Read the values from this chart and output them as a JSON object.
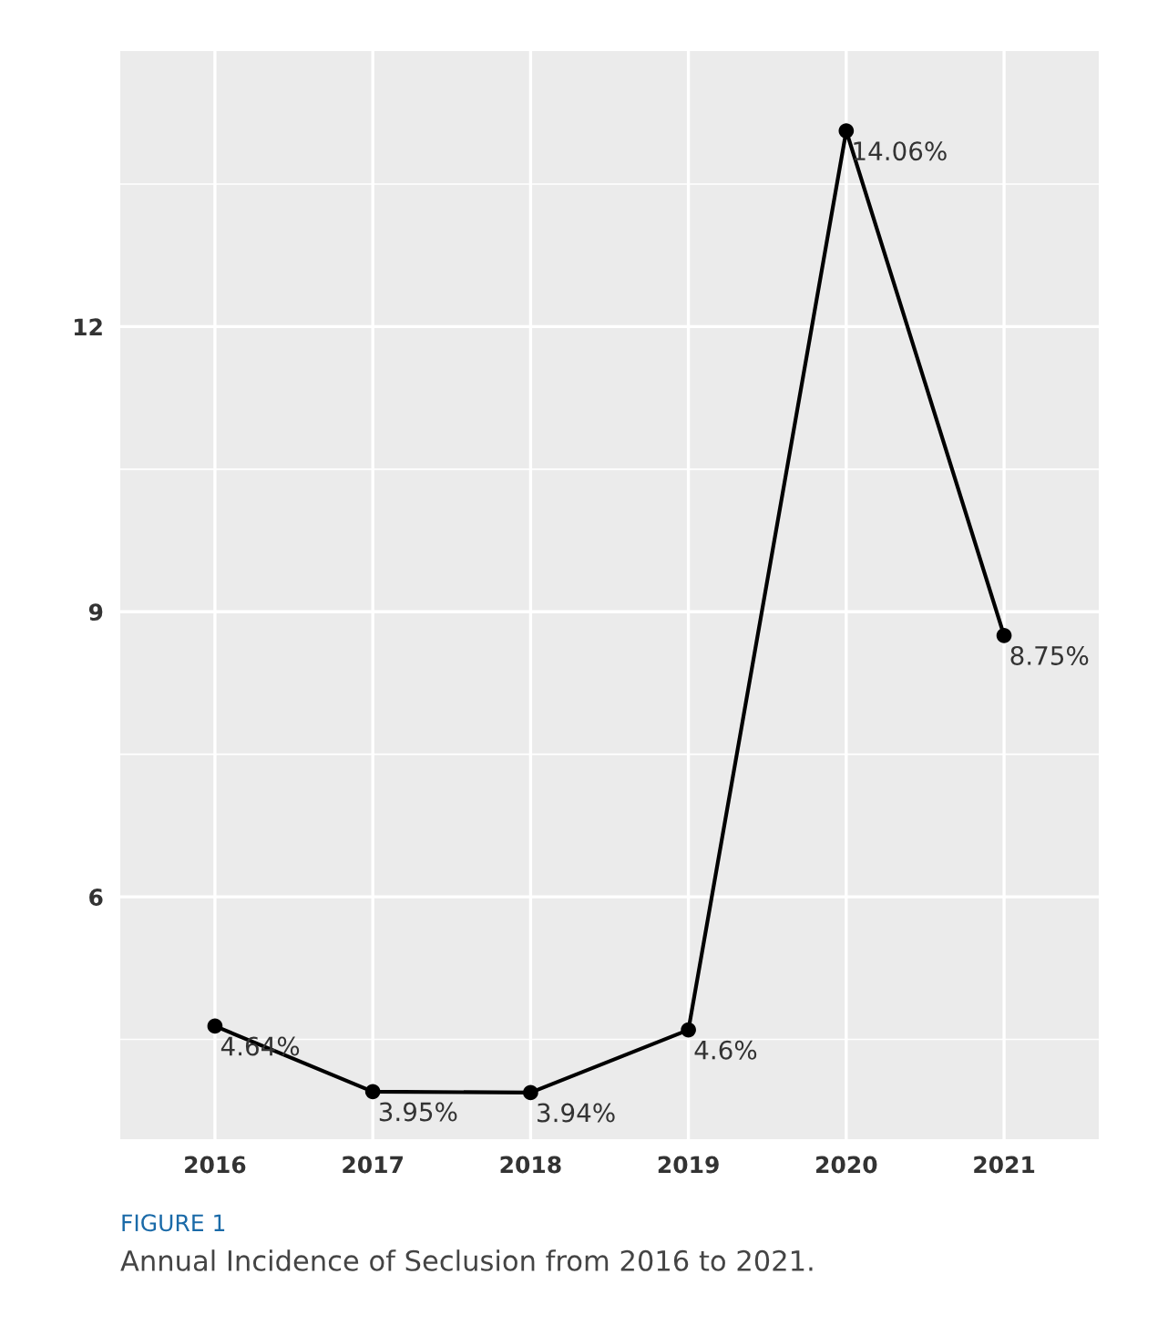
{
  "chart_data": {
    "type": "line",
    "title": "FIGURE 1",
    "subtitle": "Annual Incidence of Seclusion from 2016 to 2021.",
    "categories": [
      "2016",
      "2017",
      "2018",
      "2019",
      "2020",
      "2021"
    ],
    "series": [
      {
        "color": "#000000",
        "values": [
          4.64,
          3.95,
          3.94,
          4.6,
          14.06,
          8.75
        ],
        "value_labels": [
          "4.64%",
          "3.95%",
          "3.94%",
          "4.6%",
          "14.06%",
          "8.75%"
        ]
      }
    ],
    "ylim": [
      3.45,
      14.9
    ],
    "yticks": [
      6,
      9,
      12
    ],
    "grid": true,
    "marker": "circle",
    "line_style": "solid"
  }
}
